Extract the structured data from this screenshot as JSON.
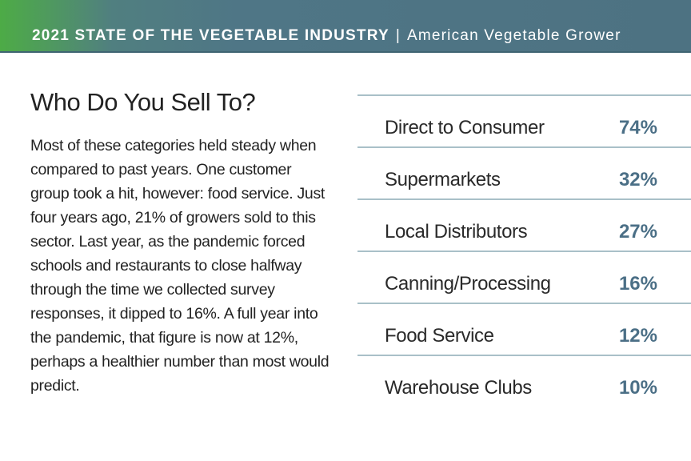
{
  "header": {
    "title": "2021 STATE OF THE VEGETABLE INDUSTRY",
    "separator": "|",
    "publication": "American Vegetable Grower"
  },
  "article": {
    "heading": "Who Do You Sell To?",
    "body": "Most of these categories held steady when compared to past years. One customer group took a hit, however: food service. Just four years ago, 21% of growers sold to this sector. Last year, as the pandemic forced schools and restaurants to close halfway through the time we collected survey responses, it dipped to 16%. A full year into the pandemic, that figure is now at 12%, perhaps a healthier number than most would predict."
  },
  "table": {
    "rows": [
      [
        "Direct to Consumer",
        "74%"
      ],
      [
        "Supermarkets",
        "32%"
      ],
      [
        "Local Distributors",
        "27%"
      ],
      [
        "Canning/Processing",
        "16%"
      ],
      [
        "Food Service",
        "12%"
      ],
      [
        "Warehouse Clubs",
        "10%"
      ]
    ]
  }
}
